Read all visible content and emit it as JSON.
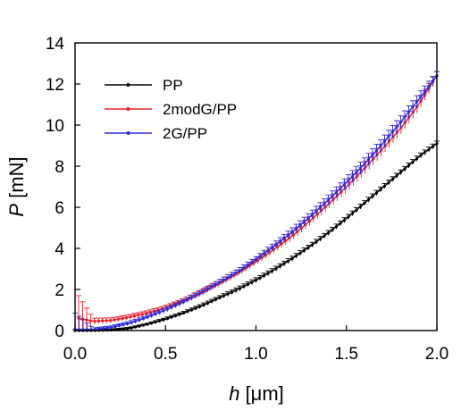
{
  "chart_data": {
    "type": "line",
    "title": "",
    "xlabel": {
      "symbol": "h",
      "unit": " [μm]"
    },
    "ylabel": {
      "symbol": "P",
      "unit": " [mN]"
    },
    "xlim": [
      0.0,
      2.0
    ],
    "ylim": [
      0,
      14
    ],
    "x_ticks": [
      "0.0",
      "0.5",
      "1.0",
      "1.5",
      "2.0"
    ],
    "y_ticks": [
      "0",
      "2",
      "4",
      "6",
      "8",
      "10",
      "12",
      "14"
    ],
    "grid": false,
    "legend_position": "top-left",
    "series": [
      {
        "name": "PP",
        "color": "#000000",
        "x": [
          0.0,
          0.1,
          0.2,
          0.3,
          0.4,
          0.5,
          0.6,
          0.7,
          0.8,
          0.9,
          1.0,
          1.1,
          1.2,
          1.3,
          1.4,
          1.5,
          1.6,
          1.7,
          1.8,
          1.9,
          2.0
        ],
        "y": [
          0.0,
          0.0,
          0.02,
          0.1,
          0.3,
          0.55,
          0.85,
          1.2,
          1.6,
          2.0,
          2.45,
          2.95,
          3.5,
          4.1,
          4.75,
          5.45,
          6.2,
          6.95,
          7.7,
          8.45,
          9.1
        ],
        "err": [
          0.05,
          0.05,
          0.05,
          0.06,
          0.06,
          0.08,
          0.08,
          0.1,
          0.1,
          0.12,
          0.12,
          0.12,
          0.12,
          0.12,
          0.12,
          0.12,
          0.12,
          0.12,
          0.12,
          0.12,
          0.12
        ]
      },
      {
        "name": "2modG/PP",
        "color": "#e8202a",
        "x": [
          0.02,
          0.1,
          0.2,
          0.3,
          0.4,
          0.5,
          0.6,
          0.7,
          0.8,
          0.9,
          1.0,
          1.1,
          1.2,
          1.3,
          1.4,
          1.5,
          1.6,
          1.7,
          1.8,
          1.9,
          2.0
        ],
        "y": [
          0.6,
          0.45,
          0.5,
          0.65,
          0.85,
          1.1,
          1.45,
          1.85,
          2.3,
          2.8,
          3.35,
          3.95,
          4.6,
          5.35,
          6.15,
          7.0,
          7.9,
          8.85,
          9.85,
          11.0,
          12.4
        ],
        "err": [
          1.1,
          0.15,
          0.12,
          0.12,
          0.12,
          0.12,
          0.12,
          0.14,
          0.14,
          0.15,
          0.15,
          0.18,
          0.2,
          0.22,
          0.25,
          0.28,
          0.3,
          0.3,
          0.3,
          0.3,
          0.2
        ]
      },
      {
        "name": "2G/PP",
        "color": "#2a2ad8",
        "x": [
          0.0,
          0.1,
          0.2,
          0.3,
          0.4,
          0.5,
          0.6,
          0.7,
          0.8,
          0.9,
          1.0,
          1.1,
          1.2,
          1.3,
          1.4,
          1.5,
          1.6,
          1.7,
          1.8,
          1.9,
          2.0
        ],
        "y": [
          0.05,
          0.05,
          0.15,
          0.35,
          0.65,
          1.0,
          1.4,
          1.85,
          2.35,
          2.85,
          3.45,
          4.1,
          4.8,
          5.55,
          6.35,
          7.2,
          8.1,
          9.1,
          10.15,
          11.25,
          12.4
        ],
        "err": [
          0.8,
          0.08,
          0.08,
          0.1,
          0.1,
          0.12,
          0.12,
          0.14,
          0.14,
          0.15,
          0.15,
          0.18,
          0.2,
          0.22,
          0.25,
          0.28,
          0.3,
          0.3,
          0.3,
          0.3,
          0.2
        ]
      }
    ]
  }
}
